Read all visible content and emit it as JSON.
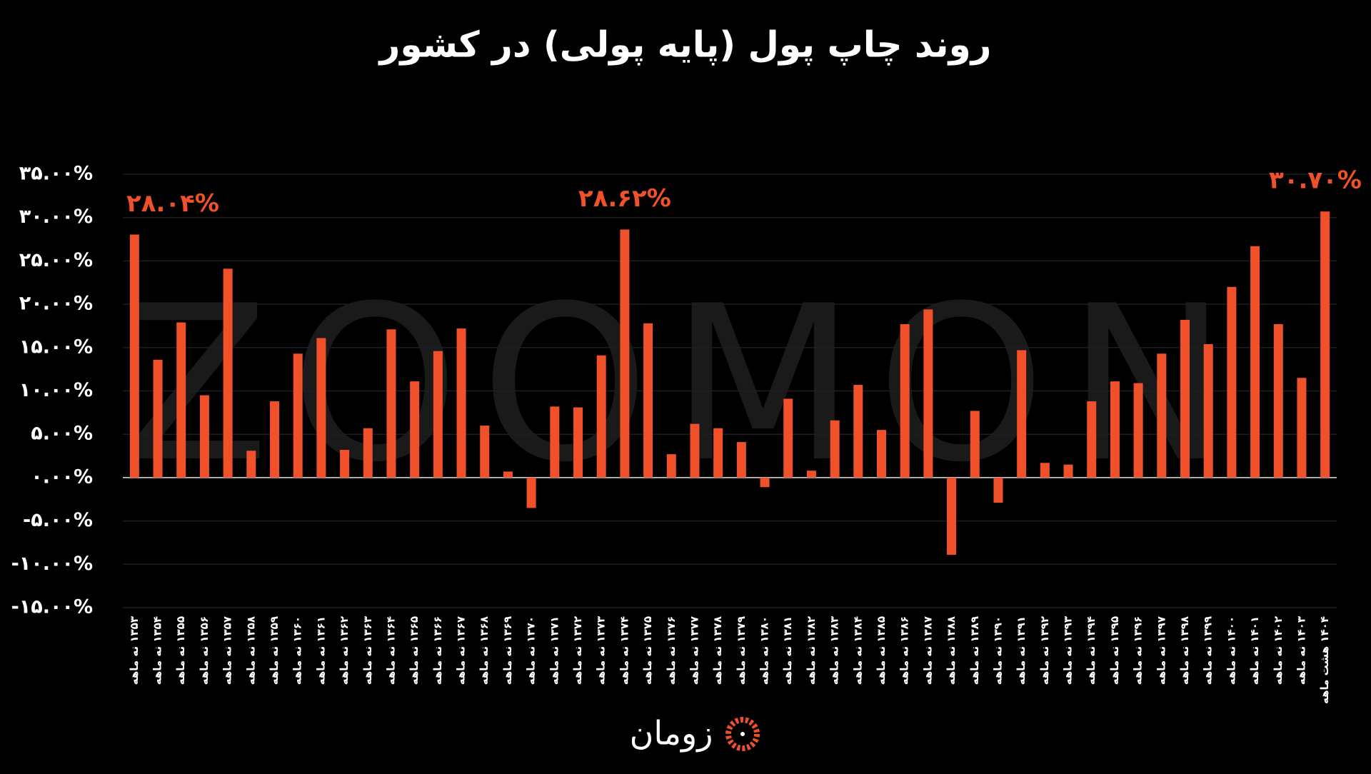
{
  "chart_data": {
    "type": "bar",
    "title": "روند چاپ پول (پایه پولی) در کشور",
    "watermark": "ZOOMON",
    "logo_text": "زومان",
    "categories": [
      "۱۳۵۳ نه ماهه",
      "۱۳۵۴ نه ماهه",
      "۱۳۵۵ نه ماهه",
      "۱۳۵۶ نه ماهه",
      "۱۳۵۷ نه ماهه",
      "۱۳۵۸ نه ماهه",
      "۱۳۵۹ نه ماهه",
      "۱۳۶۰ نه ماهه",
      "۱۳۶۱ نه ماهه",
      "۱۳۶۲ نه ماهه",
      "۱۳۶۳ نه ماهه",
      "۱۳۶۴ نه ماهه",
      "۱۳۶۵ نه ماهه",
      "۱۳۶۶ نه ماهه",
      "۱۳۶۷ نه ماهه",
      "۱۳۶۸ نه ماهه",
      "۱۳۶۹ نه ماهه",
      "۱۳۷۰ نه ماهه",
      "۱۳۷۱ نه ماهه",
      "۱۳۷۲ نه ماهه",
      "۱۳۷۳ نه ماهه",
      "۱۳۷۴ نه ماهه",
      "۱۳۷۵ نه ماهه",
      "۱۳۷۶ نه ماهه",
      "۱۳۷۷ نه ماهه",
      "۱۳۷۸ نه ماهه",
      "۱۳۷۹ نه ماهه",
      "۱۳۸۰ نه ماهه",
      "۱۳۸۱ نه ماهه",
      "۱۳۸۲ نه ماهه",
      "۱۳۸۳ نه ماهه",
      "۱۳۸۴ نه ماهه",
      "۱۳۸۵ نه ماهه",
      "۱۳۸۶ نه ماهه",
      "۱۳۸۷ نه ماهه",
      "۱۳۸۸ نه ماهه",
      "۱۳۸۹ نه ماهه",
      "۱۳۹۰ نه ماهه",
      "۱۳۹۱ نه ماهه",
      "۱۳۹۲ نه ماهه",
      "۱۳۹۳ نه ماهه",
      "۱۳۹۴ نه ماهه",
      "۱۳۹۵ نه ماهه",
      "۱۳۹۶ نه ماهه",
      "۱۳۹۷ نه ماهه",
      "۱۳۹۸ نه ماهه",
      "۱۳۹۹ نه ماهه",
      "۱۴۰۰ نه ماهه",
      "۱۴۰۱ نه ماهه",
      "۱۴۰۲ نه ماهه",
      "۱۴۰۳ نه ماهه",
      "۱۴۰۴ هشت ماهه"
    ],
    "values": [
      28.04,
      13.6,
      17.9,
      9.5,
      24.1,
      3.1,
      8.8,
      14.3,
      16.1,
      3.2,
      5.7,
      17.1,
      11.1,
      14.6,
      17.2,
      6.0,
      0.7,
      -3.5,
      8.2,
      8.1,
      14.1,
      28.62,
      17.8,
      2.7,
      6.2,
      5.7,
      4.1,
      -1.1,
      9.1,
      0.8,
      6.6,
      10.7,
      5.5,
      17.7,
      19.4,
      -8.9,
      7.7,
      -2.9,
      14.7,
      1.7,
      1.5,
      8.8,
      11.1,
      10.9,
      14.3,
      18.2,
      15.4,
      22.0,
      26.7,
      17.7,
      11.5,
      30.7
    ],
    "value_labels": [
      "۲۸.۰۴%",
      null,
      null,
      null,
      null,
      null,
      null,
      null,
      null,
      null,
      null,
      null,
      null,
      null,
      null,
      null,
      null,
      null,
      null,
      null,
      null,
      "۲۸.۶۲%",
      null,
      null,
      null,
      null,
      null,
      null,
      null,
      null,
      null,
      null,
      null,
      null,
      null,
      null,
      null,
      null,
      null,
      null,
      null,
      null,
      null,
      null,
      null,
      null,
      null,
      null,
      null,
      null,
      null,
      "۳۰.۷۰%"
    ],
    "color": "#f0512a",
    "ylim": [
      -15,
      35
    ],
    "yticks": [
      {
        "value": 35,
        "label": "۳۵.۰۰%"
      },
      {
        "value": 30,
        "label": "۳۰.۰۰%"
      },
      {
        "value": 25,
        "label": "۲۵.۰۰%"
      },
      {
        "value": 20,
        "label": "۲۰.۰۰%"
      },
      {
        "value": 15,
        "label": "۱۵.۰۰%"
      },
      {
        "value": 10,
        "label": "۱۰.۰۰%"
      },
      {
        "value": 5,
        "label": "۵.۰۰%"
      },
      {
        "value": 0,
        "label": "۰.۰۰%"
      },
      {
        "value": -5,
        "label": "-۵.۰۰%"
      },
      {
        "value": -10,
        "label": "-۱۰.۰۰%"
      },
      {
        "value": -15,
        "label": "-۱۵.۰۰%"
      }
    ],
    "grid": true
  }
}
